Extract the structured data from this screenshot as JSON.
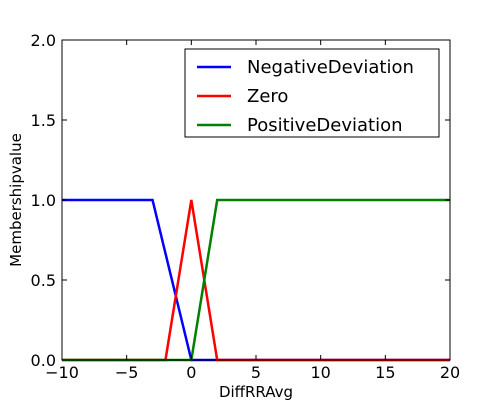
{
  "chart_data": {
    "type": "line",
    "title": "",
    "xlabel": "DiffRRAvg",
    "ylabel": "Membershipvalue",
    "xlim": [
      -10,
      20
    ],
    "ylim": [
      0,
      2
    ],
    "xticks": [
      -10,
      -5,
      0,
      5,
      10,
      15,
      20
    ],
    "xtick_labels": [
      "−10",
      "−5",
      "0",
      "5",
      "10",
      "15",
      "20"
    ],
    "yticks": [
      0,
      0.5,
      1,
      1.5,
      2
    ],
    "ytick_labels": [
      "0.0",
      "0.5",
      "1.0",
      "1.5",
      "2.0"
    ],
    "grid": false,
    "legend_position": "upper-right",
    "series": [
      {
        "name": "NegativeDeviation",
        "color": "#0000ff",
        "x": [
          -10,
          -3,
          0,
          20
        ],
        "y": [
          1,
          1,
          0,
          0
        ]
      },
      {
        "name": "Zero",
        "color": "#ff0000",
        "x": [
          -10,
          -2,
          0,
          2,
          20
        ],
        "y": [
          0,
          0,
          1,
          0,
          0
        ]
      },
      {
        "name": "PositiveDeviation",
        "color": "#008000",
        "x": [
          -10,
          0,
          2,
          20
        ],
        "y": [
          0,
          0,
          1,
          1
        ]
      }
    ]
  }
}
